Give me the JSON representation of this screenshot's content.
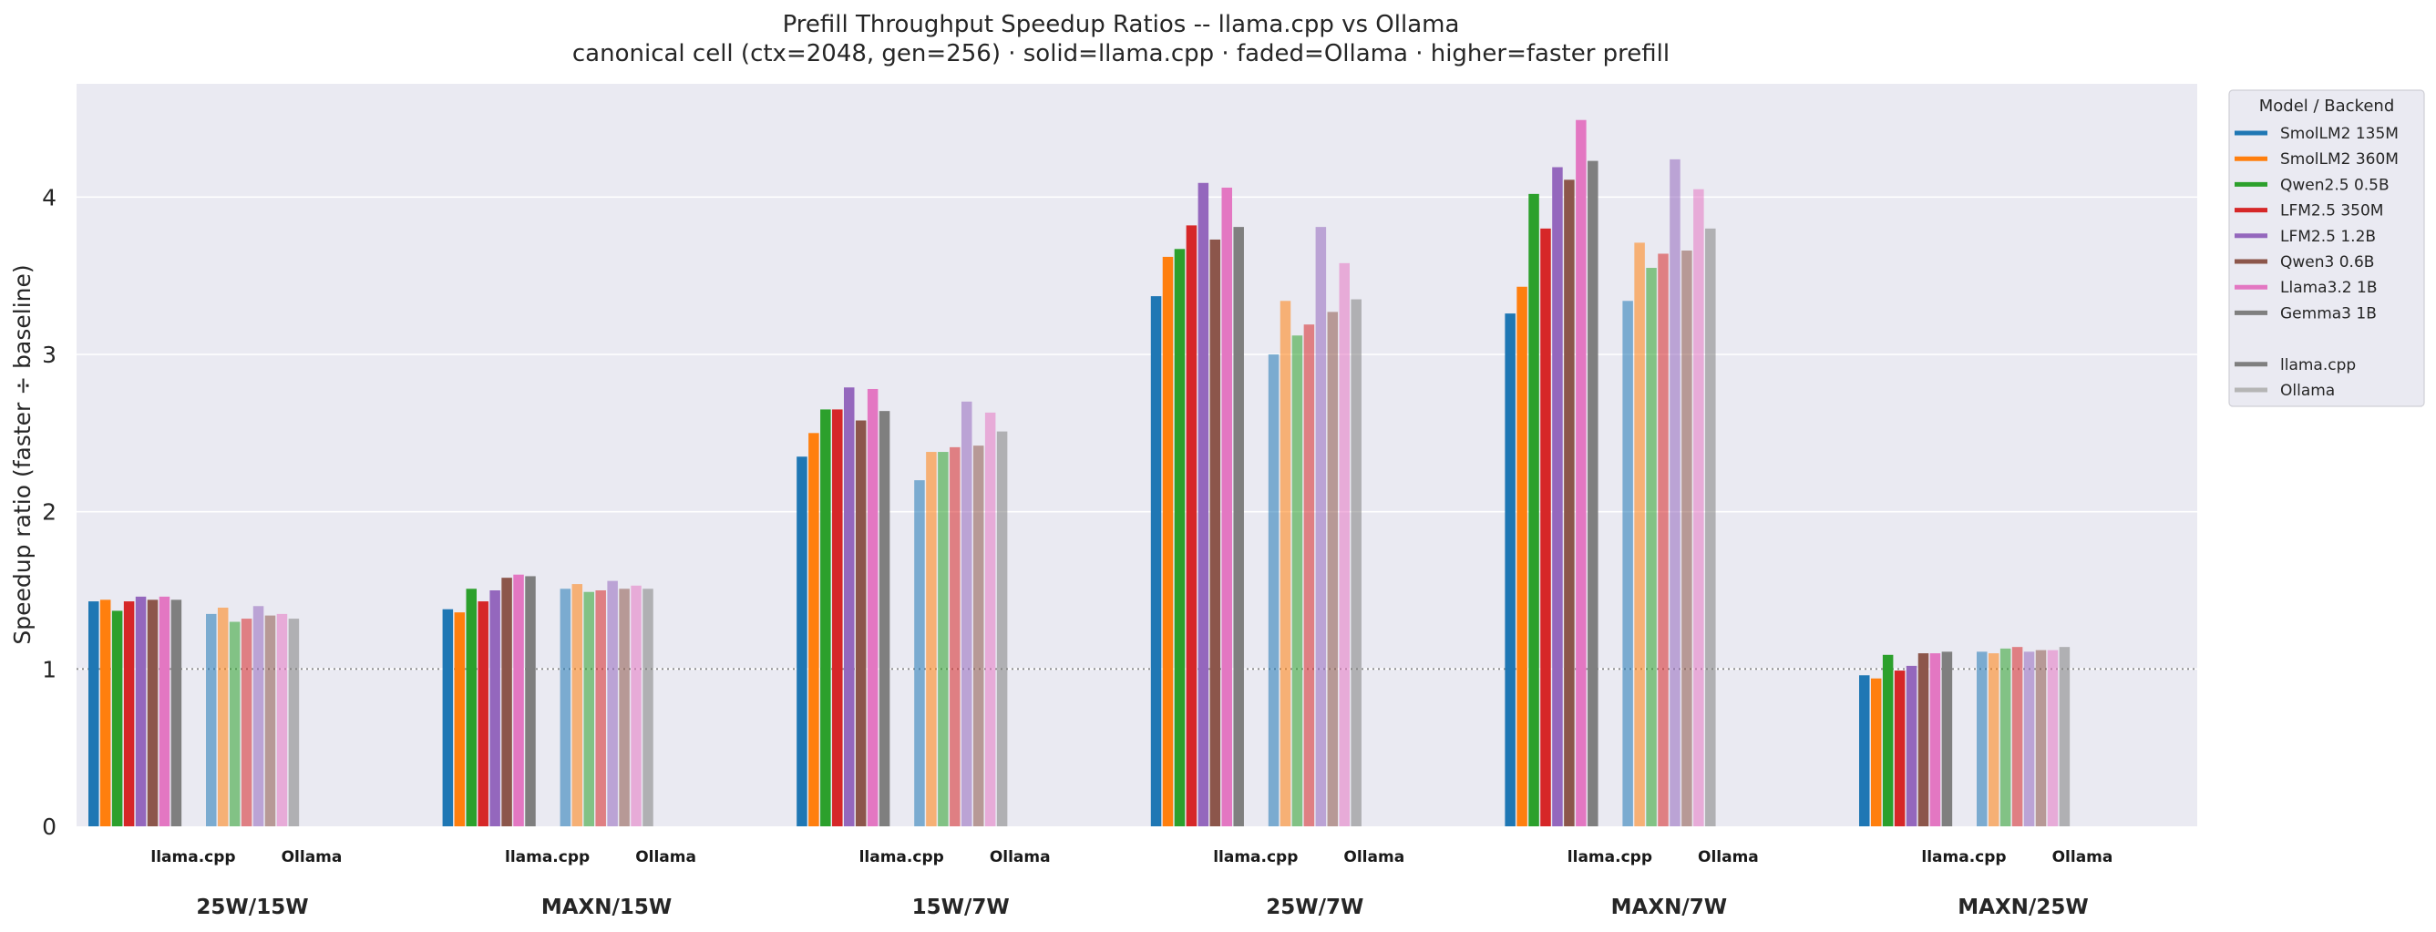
{
  "chart_data": {
    "type": "bar",
    "title": "Prefill Throughput Speedup Ratios -- llama.cpp vs Ollama",
    "subtitle": "canonical cell (ctx=2048, gen=256) · solid=llama.cpp · faded=Ollama · higher=faster prefill",
    "xlabel": "",
    "ylabel": "Speedup ratio (faster ÷ baseline)",
    "ylim": [
      0,
      4.72
    ],
    "yticks": [
      0,
      1,
      2,
      3,
      4
    ],
    "reference_line": 1,
    "grid": true,
    "legend_position": "outside-right",
    "categories": [
      "25W/15W",
      "MAXN/15W",
      "15W/7W",
      "25W/7W",
      "MAXN/7W",
      "MAXN/25W"
    ],
    "backends": [
      "llama.cpp",
      "Ollama"
    ],
    "series": [
      {
        "name": "SmolLM2 135M",
        "color": "#1f77b4",
        "llama_cpp": [
          1.43,
          1.38,
          2.35,
          3.37,
          3.26,
          0.96
        ],
        "ollama": [
          1.35,
          1.51,
          2.2,
          3.0,
          3.34,
          1.11
        ]
      },
      {
        "name": "SmolLM2 360M",
        "color": "#ff7f0e",
        "llama_cpp": [
          1.44,
          1.36,
          2.5,
          3.62,
          3.43,
          0.94
        ],
        "ollama": [
          1.39,
          1.54,
          2.38,
          3.34,
          3.71,
          1.1
        ]
      },
      {
        "name": "Qwen2.5 0.5B",
        "color": "#2ca02c",
        "llama_cpp": [
          1.37,
          1.51,
          2.65,
          3.67,
          4.02,
          1.09
        ],
        "ollama": [
          1.3,
          1.49,
          2.38,
          3.12,
          3.55,
          1.13
        ]
      },
      {
        "name": "LFM2.5 350M",
        "color": "#d62728",
        "llama_cpp": [
          1.43,
          1.43,
          2.65,
          3.82,
          3.8,
          0.99
        ],
        "ollama": [
          1.32,
          1.5,
          2.41,
          3.19,
          3.64,
          1.14
        ]
      },
      {
        "name": "LFM2.5 1.2B",
        "color": "#9467bd",
        "llama_cpp": [
          1.46,
          1.5,
          2.79,
          4.09,
          4.19,
          1.02
        ],
        "ollama": [
          1.4,
          1.56,
          2.7,
          3.81,
          4.24,
          1.11
        ]
      },
      {
        "name": "Qwen3 0.6B",
        "color": "#8c564b",
        "llama_cpp": [
          1.44,
          1.58,
          2.58,
          3.73,
          4.11,
          1.1
        ],
        "ollama": [
          1.34,
          1.51,
          2.42,
          3.27,
          3.66,
          1.12
        ]
      },
      {
        "name": "Llama3.2 1B",
        "color": "#e377c2",
        "llama_cpp": [
          1.46,
          1.6,
          2.78,
          4.06,
          4.49,
          1.1
        ],
        "ollama": [
          1.35,
          1.53,
          2.63,
          3.58,
          4.05,
          1.12
        ]
      },
      {
        "name": "Gemma3 1B",
        "color": "#7f7f7f",
        "llama_cpp": [
          1.44,
          1.59,
          2.64,
          3.81,
          4.23,
          1.11
        ],
        "ollama": [
          1.32,
          1.51,
          2.51,
          3.35,
          3.8,
          1.14
        ]
      }
    ],
    "legend": {
      "title": "Model / Backend",
      "backend_entries": [
        {
          "name": "llama.cpp",
          "color": "#7f7f7f"
        },
        {
          "name": "Ollama",
          "color": "#b5b5b5"
        }
      ]
    }
  },
  "colors": {
    "plot_background": "#eaeaf2",
    "grid": "#ffffff",
    "reference_line": "#8c8c8c"
  }
}
